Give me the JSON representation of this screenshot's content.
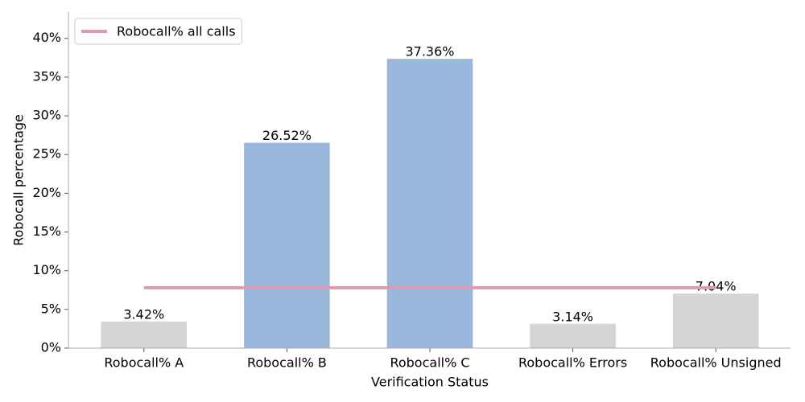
{
  "chart_data": {
    "type": "bar",
    "x_label": "Verification Status",
    "y_label": "Robocall percentage",
    "categories": [
      "Robocall% A",
      "Robocall% B",
      "Robocall% C",
      "Robocall% Errors",
      "Robocall% Unsigned"
    ],
    "values": [
      3.42,
      26.52,
      37.36,
      3.14,
      7.04
    ],
    "value_labels": [
      "3.42%",
      "26.52%",
      "37.36%",
      "3.14%",
      "7.04%"
    ],
    "colors": [
      "#d3d4d6",
      "#9ab7dc",
      "#9ab7dc",
      "#d3d4d6",
      "#d3d4d6"
    ],
    "lines": [
      {
        "name": "Robocall% all calls",
        "color": "#dd9ab8",
        "values": [
          7.8,
          7.8,
          7.8,
          7.8,
          7.8
        ]
      }
    ],
    "ylim": [
      0,
      43.4
    ],
    "yticks": [
      {
        "value": 0,
        "label": "0%"
      },
      {
        "value": 5,
        "label": "5%"
      },
      {
        "value": 10,
        "label": "10%"
      },
      {
        "value": 15,
        "label": "15%"
      },
      {
        "value": 20,
        "label": "20%"
      },
      {
        "value": 25,
        "label": "25%"
      },
      {
        "value": 30,
        "label": "30%"
      },
      {
        "value": 35,
        "label": "35%"
      },
      {
        "value": 40,
        "label": "40%"
      }
    ],
    "legend": "upper left"
  }
}
